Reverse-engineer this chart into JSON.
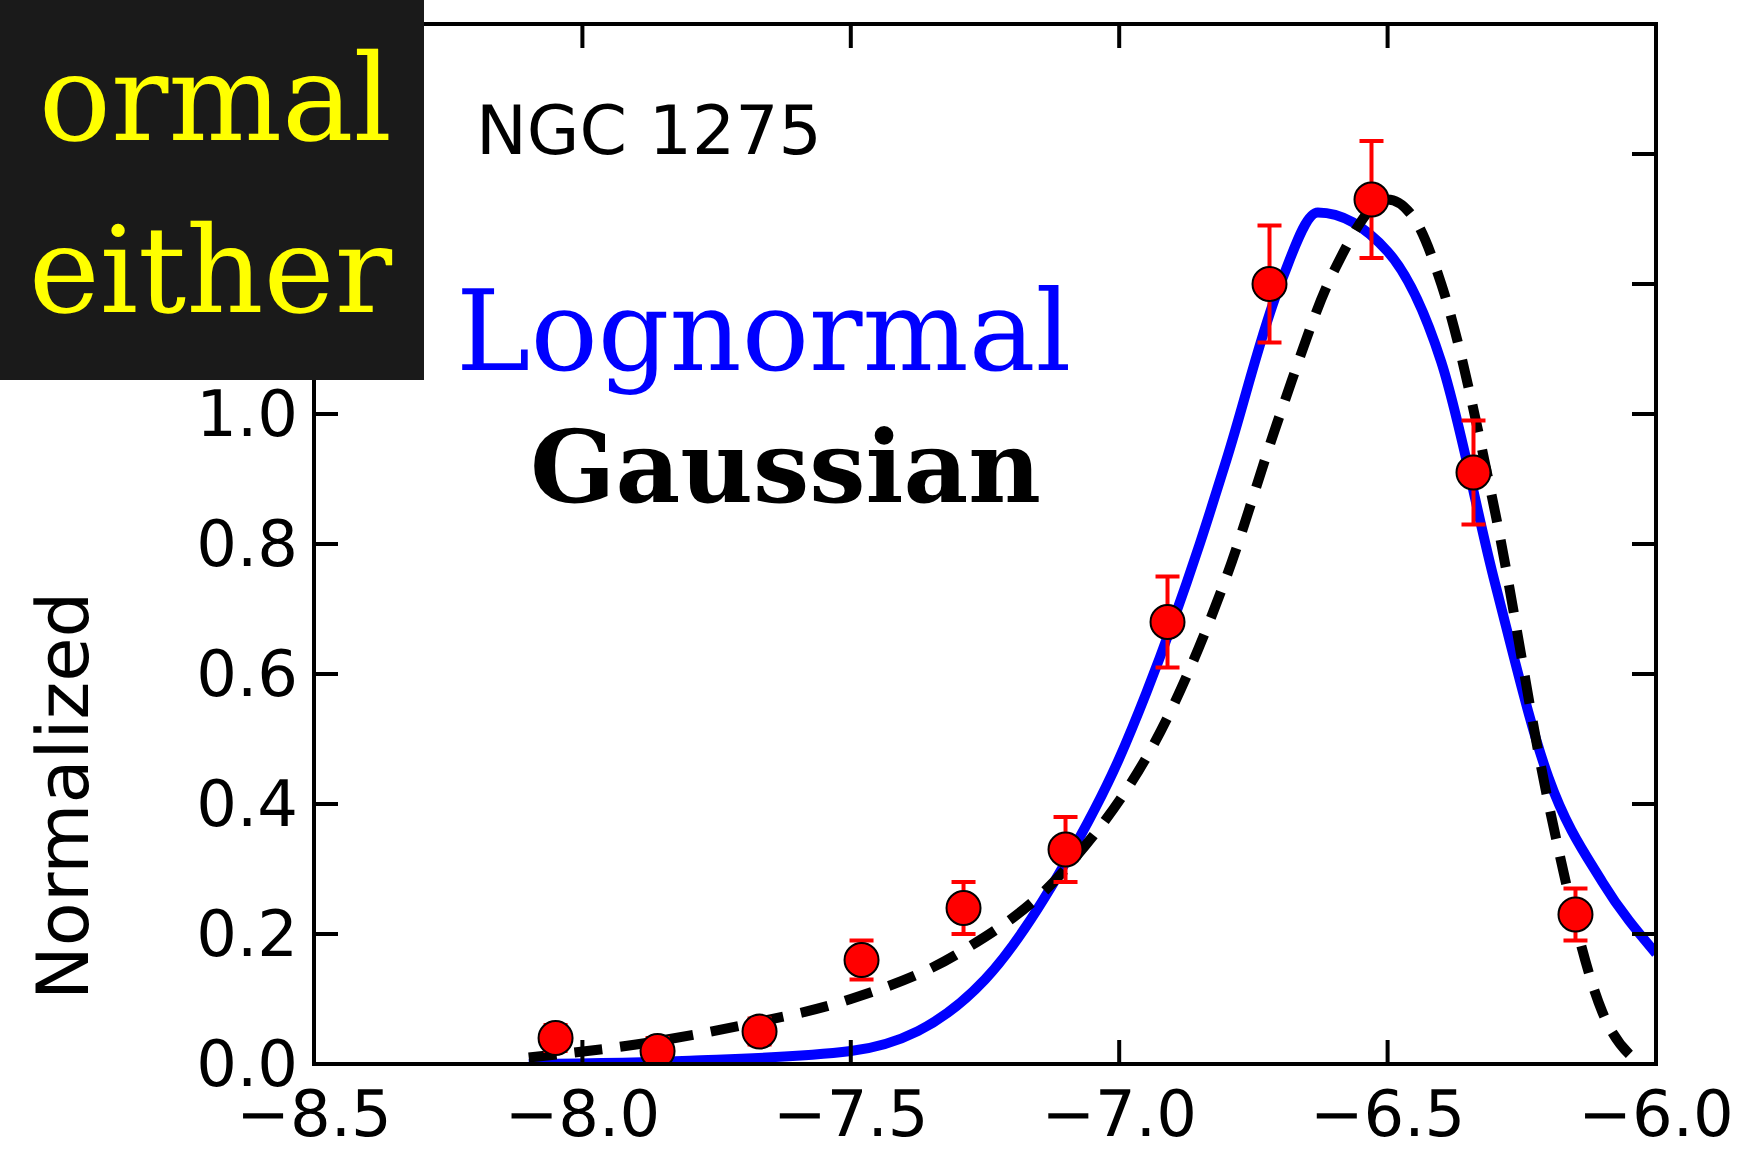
{
  "chart_data": {
    "type": "scatter",
    "ylabel": "Normalized",
    "xlim": [
      -8.5,
      -6.0
    ],
    "ylim": [
      0,
      1.6
    ],
    "xticks": [
      {
        "value": -8.5,
        "label": "−8.5"
      },
      {
        "value": -8.0,
        "label": "−8.0"
      },
      {
        "value": -7.5,
        "label": "−7.5"
      },
      {
        "value": -7.0,
        "label": "−7.0"
      },
      {
        "value": -6.5,
        "label": "−6.5"
      },
      {
        "value": -6.0,
        "label": "−6.0"
      }
    ],
    "yticks": [
      {
        "value": 0,
        "label": "0.0"
      },
      {
        "value": 0.2,
        "label": "0.2"
      },
      {
        "value": 0.4,
        "label": "0.4"
      },
      {
        "value": 0.6,
        "label": "0.6"
      },
      {
        "value": 0.8,
        "label": "0.8"
      },
      {
        "value": 1.0,
        "label": "1.0"
      },
      {
        "value": 1.2,
        "label": null
      },
      {
        "value": 1.4,
        "label": null
      }
    ],
    "grid": false,
    "legend": "top left",
    "annotations": [
      "NGC 1275",
      "ormal",
      "either"
    ],
    "series": [
      {
        "color": "#ff0000",
        "marker": "circle",
        "x": [
          -8.05,
          -7.86,
          -7.67,
          -7.48,
          -7.29,
          -7.1,
          -6.91,
          -6.72,
          -6.53,
          -6.34,
          -6.15
        ],
        "values": [
          0.04,
          0.02,
          0.05,
          0.16,
          0.24,
          0.33,
          0.68,
          1.2,
          1.33,
          0.91,
          0.23
        ],
        "errors": [
          0.02,
          0.02,
          0.02,
          0.03,
          0.04,
          0.05,
          0.07,
          0.09,
          0.09,
          0.08,
          0.04
        ]
      },
      {
        "type": "line",
        "name": "Lognormal",
        "color": "#0000ff",
        "line_style": "solid",
        "x": [
          -8.1,
          -7.8,
          -7.5,
          -7.25,
          -7.1,
          -7.0,
          -6.95,
          -6.85,
          -6.8,
          -6.7,
          -6.63,
          -6.5,
          -6.4,
          -6.3,
          -6.2,
          -6.1,
          -6.0
        ],
        "values": [
          0,
          0.005,
          0.02,
          0.13,
          0.31,
          0.47,
          0.57,
          0.8,
          0.93,
          1.2,
          1.31,
          1.25,
          1.08,
          0.74,
          0.44,
          0.28,
          0.17
        ]
      },
      {
        "type": "line",
        "name": "Gaussian",
        "color": "#000000",
        "line_style": "dashed",
        "x": [
          -8.1,
          -7.9,
          -7.7,
          -7.5,
          -7.3,
          -7.1,
          -6.9,
          -6.8,
          -6.7,
          -6.6,
          -6.5,
          -6.45,
          -6.4,
          -6.3,
          -6.2,
          -6.1,
          -6.03
        ],
        "values": [
          0.01,
          0.03,
          0.06,
          0.1,
          0.17,
          0.3,
          0.55,
          0.75,
          1.0,
          1.22,
          1.33,
          1.3,
          1.2,
          0.85,
          0.4,
          0.08,
          0
        ]
      }
    ]
  }
}
